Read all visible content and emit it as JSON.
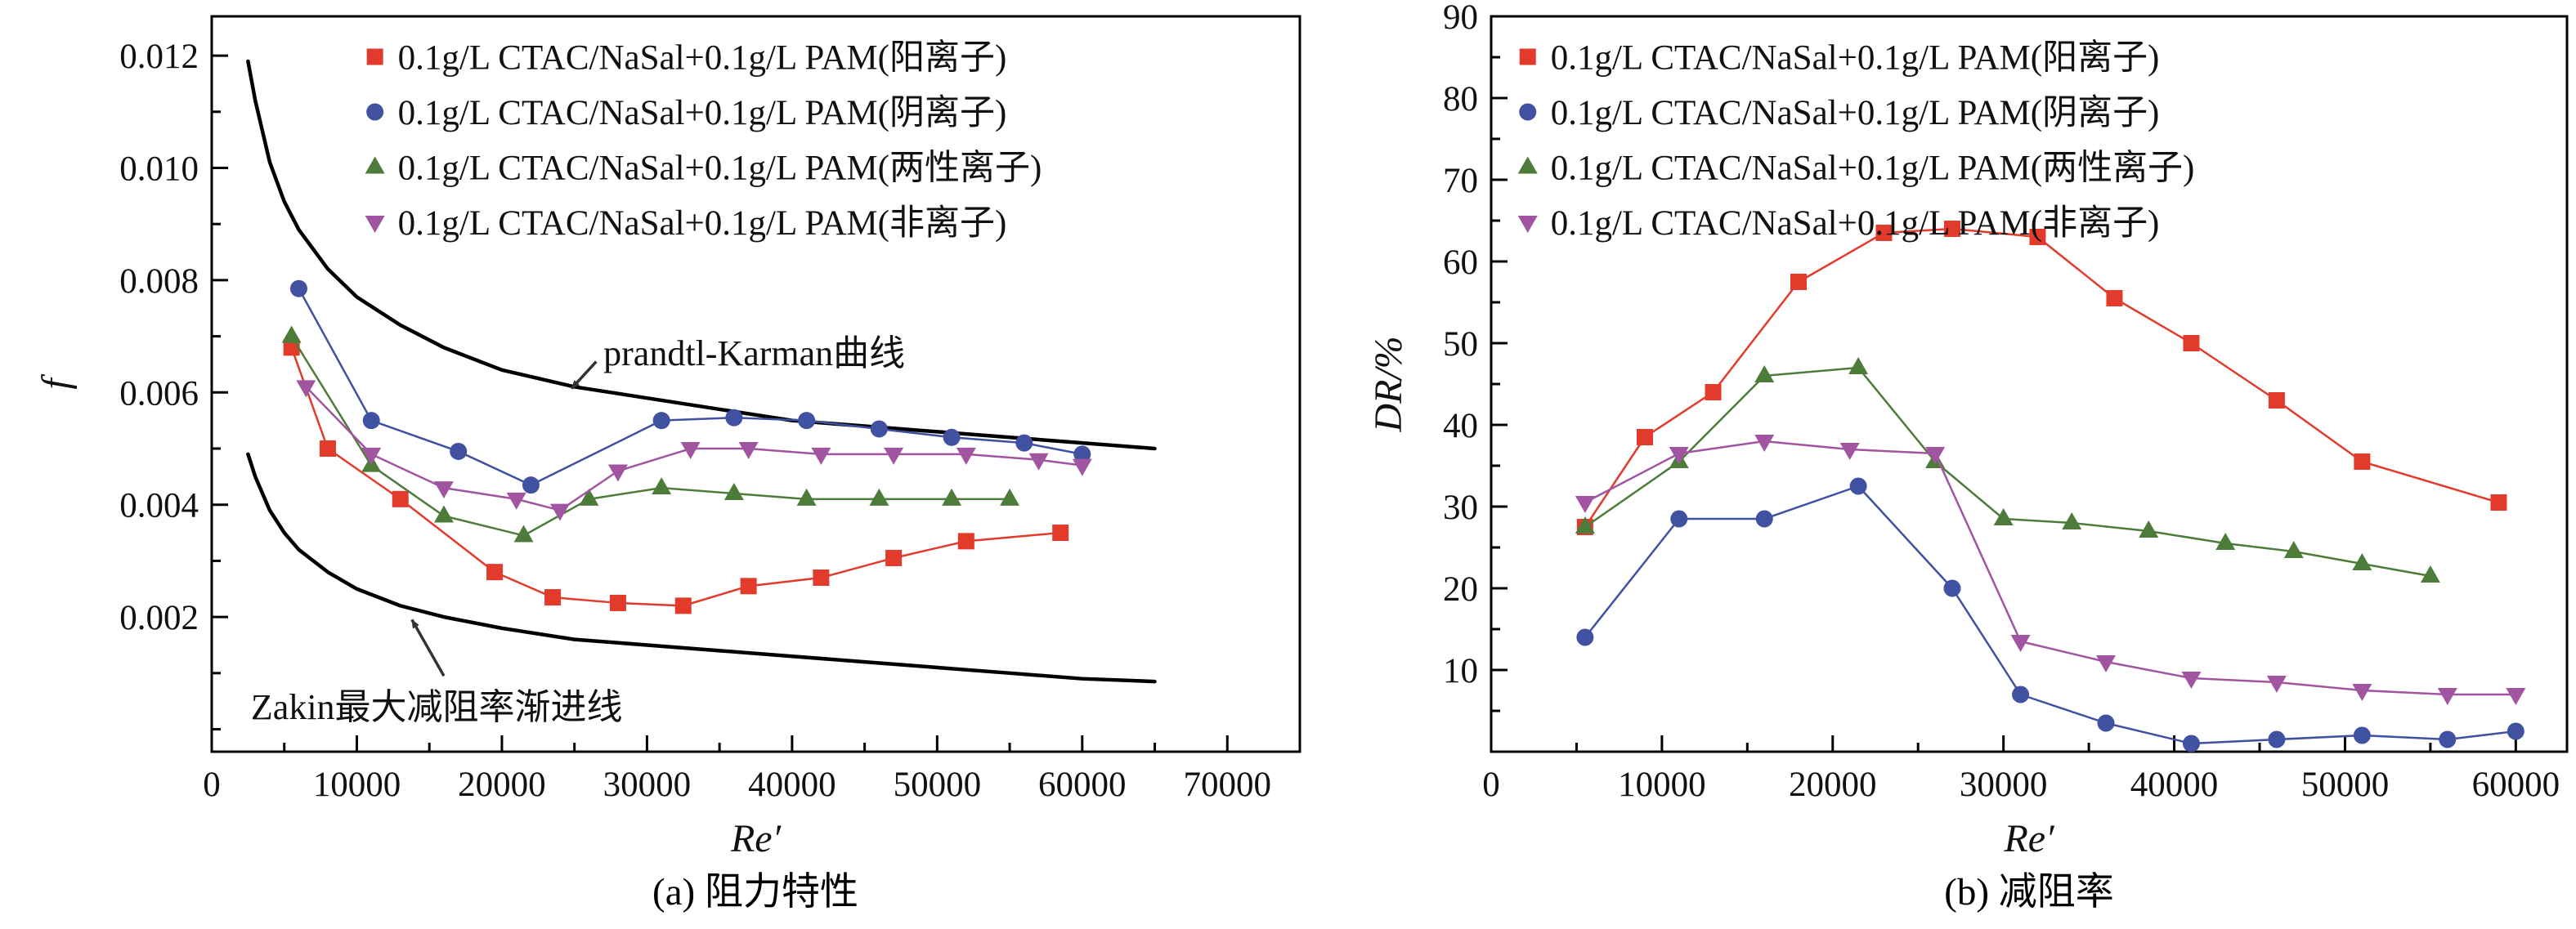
{
  "figure": {
    "description": "Two-panel scatter chart of drag-reduction experiments for CTAC/NaSal + PAM solutions"
  },
  "chart_data": [
    {
      "id": "a",
      "type": "scatter",
      "title": "(a) 阻力特性",
      "xlabel": "Re′",
      "ylabel": "f",
      "xlim": [
        0,
        75000
      ],
      "ylim": [
        -0.0004,
        0.0127
      ],
      "xticks": [
        0,
        10000,
        20000,
        30000,
        40000,
        50000,
        60000,
        70000
      ],
      "yticks": [
        0.002,
        0.004,
        0.006,
        0.008,
        0.01,
        0.012
      ],
      "x_minor_step": 5000,
      "y_minor_step": 0.001,
      "legend_position": "top-left-inside",
      "series": [
        {
          "name": "0.1g/L CTAC/NaSal+0.1g/L PAM(阳离子)",
          "marker": "square",
          "color": "#e23b2c",
          "x": [
            5500,
            8000,
            13000,
            19500,
            23500,
            28000,
            32500,
            37000,
            42000,
            47000,
            52000,
            58500
          ],
          "y": [
            0.0068,
            0.005,
            0.0041,
            0.0028,
            0.00235,
            0.00225,
            0.0022,
            0.00255,
            0.0027,
            0.00305,
            0.00335,
            0.0035
          ]
        },
        {
          "name": "0.1g/L CTAC/NaSal+0.1g/L PAM(阴离子)",
          "marker": "circle",
          "color": "#3f51a0",
          "x": [
            6000,
            11000,
            17000,
            22000,
            31000,
            36000,
            41000,
            46000,
            51000,
            56000,
            60000
          ],
          "y": [
            0.00785,
            0.0055,
            0.00495,
            0.00435,
            0.0055,
            0.00555,
            0.0055,
            0.00535,
            0.0052,
            0.0051,
            0.0049
          ]
        },
        {
          "name": "0.1g/L CTAC/NaSal+0.1g/L PAM(两性离子)",
          "marker": "triangle-up",
          "color": "#4d7c3a",
          "x": [
            5500,
            11000,
            16000,
            21500,
            26000,
            31000,
            36000,
            41000,
            46000,
            51000,
            55000
          ],
          "y": [
            0.007,
            0.0047,
            0.0038,
            0.00345,
            0.0041,
            0.0043,
            0.0042,
            0.0041,
            0.0041,
            0.0041,
            0.0041
          ]
        },
        {
          "name": "0.1g/L CTAC/NaSal+0.1g/L PAM(非离子)",
          "marker": "triangle-down",
          "color": "#a155a1",
          "x": [
            6500,
            11000,
            16000,
            21000,
            24000,
            28000,
            33000,
            37000,
            42000,
            47000,
            52000,
            57000,
            60000
          ],
          "y": [
            0.0061,
            0.0049,
            0.0043,
            0.0041,
            0.0039,
            0.0046,
            0.005,
            0.005,
            0.0049,
            0.0049,
            0.0049,
            0.0048,
            0.0047
          ]
        }
      ],
      "curves": [
        {
          "name": "prandtl-Karman曲线",
          "points": [
            [
              2500,
              0.0119
            ],
            [
              3000,
              0.0112
            ],
            [
              4000,
              0.0101
            ],
            [
              5000,
              0.0094
            ],
            [
              6000,
              0.0089
            ],
            [
              8000,
              0.0082
            ],
            [
              10000,
              0.0077
            ],
            [
              13000,
              0.0072
            ],
            [
              16000,
              0.0068
            ],
            [
              20000,
              0.0064
            ],
            [
              25000,
              0.0061
            ],
            [
              30000,
              0.0059
            ],
            [
              35000,
              0.0057
            ],
            [
              40000,
              0.0055
            ],
            [
              45000,
              0.0054
            ],
            [
              50000,
              0.0053
            ],
            [
              55000,
              0.0052
            ],
            [
              60000,
              0.0051
            ],
            [
              65000,
              0.005
            ]
          ]
        },
        {
          "name": "Zakin最大减阻率渐进线",
          "points": [
            [
              2500,
              0.0049
            ],
            [
              3000,
              0.0045
            ],
            [
              4000,
              0.0039
            ],
            [
              5000,
              0.0035
            ],
            [
              6000,
              0.0032
            ],
            [
              8000,
              0.0028
            ],
            [
              10000,
              0.0025
            ],
            [
              13000,
              0.0022
            ],
            [
              16000,
              0.002
            ],
            [
              20000,
              0.0018
            ],
            [
              25000,
              0.0016
            ],
            [
              30000,
              0.0015
            ],
            [
              35000,
              0.0014
            ],
            [
              40000,
              0.0013
            ],
            [
              45000,
              0.0012
            ],
            [
              50000,
              0.0011
            ],
            [
              55000,
              0.001
            ],
            [
              60000,
              0.0009
            ],
            [
              65000,
              0.00085
            ]
          ]
        }
      ],
      "annotations": [
        {
          "text": "prandtl-Karman曲线",
          "text_at": [
            27000,
            0.0067
          ],
          "arrow_from": [
            26500,
            0.00655
          ],
          "arrow_to": [
            24800,
            0.00607
          ]
        },
        {
          "text": "Zakin最大减阻率渐进线",
          "text_at": [
            2700,
            0.0004
          ],
          "arrow_from": [
            16000,
            0.00095
          ],
          "arrow_to": [
            13800,
            0.00195
          ]
        }
      ]
    },
    {
      "id": "b",
      "type": "scatter",
      "title": "(b) 减阻率",
      "xlabel": "Re′",
      "ylabel": "DR/%",
      "xlim": [
        0,
        63000
      ],
      "ylim": [
        0,
        90
      ],
      "xticks": [
        0,
        10000,
        20000,
        30000,
        40000,
        50000,
        60000
      ],
      "yticks": [
        10,
        20,
        30,
        40,
        50,
        60,
        70,
        80,
        90
      ],
      "x_minor_step": 5000,
      "y_minor_step": 5,
      "legend_position": "top-left-inside",
      "series": [
        {
          "name": "0.1g/L CTAC/NaSal+0.1g/L PAM(阳离子)",
          "marker": "square",
          "color": "#e23b2c",
          "x": [
            5500,
            9000,
            13000,
            18000,
            23000,
            27000,
            32000,
            36500,
            41000,
            46000,
            51000,
            59000
          ],
          "y": [
            27.5,
            38.5,
            44,
            57.5,
            63.5,
            64,
            63,
            55.5,
            50,
            43,
            35.5,
            30.5
          ]
        },
        {
          "name": "0.1g/L CTAC/NaSal+0.1g/L PAM(阴离子)",
          "marker": "circle",
          "color": "#3f51a0",
          "x": [
            5500,
            11000,
            16000,
            21500,
            27000,
            31000,
            36000,
            41000,
            46000,
            51000,
            56000,
            60000
          ],
          "y": [
            14,
            28.5,
            28.5,
            32.5,
            20,
            7,
            3.5,
            1,
            1.5,
            2,
            1.5,
            2.5
          ]
        },
        {
          "name": "0.1g/L CTAC/NaSal+0.1g/L PAM(两性离子)",
          "marker": "triangle-up",
          "color": "#4d7c3a",
          "x": [
            5500,
            11000,
            16000,
            21500,
            26000,
            30000,
            34000,
            38500,
            43000,
            47000,
            51000,
            55000
          ],
          "y": [
            27.5,
            35.5,
            46,
            47,
            35.5,
            28.5,
            28,
            27,
            25.5,
            24.5,
            23,
            21.5
          ]
        },
        {
          "name": "0.1g/L CTAC/NaSal+0.1g/L PAM(非离子)",
          "marker": "triangle-down",
          "color": "#a155a1",
          "x": [
            5500,
            11000,
            16000,
            21000,
            26000,
            31000,
            36000,
            41000,
            46000,
            51000,
            56000,
            60000
          ],
          "y": [
            30.5,
            36.5,
            38,
            37,
            36.5,
            13.5,
            11,
            9,
            8.5,
            7.5,
            7,
            7
          ]
        }
      ],
      "curves": [],
      "annotations": []
    }
  ]
}
